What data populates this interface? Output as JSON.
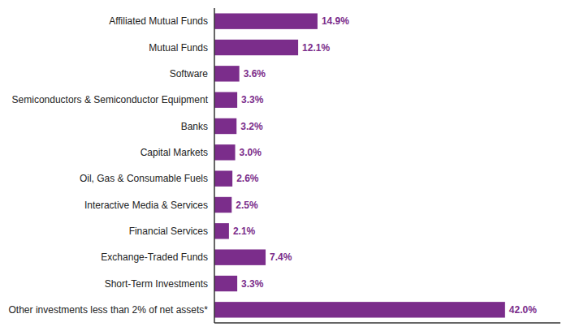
{
  "chart_data": {
    "type": "bar",
    "orientation": "horizontal",
    "categories": [
      "Affiliated Mutual Funds",
      "Mutual Funds",
      "Software",
      "Semiconductors & Semiconductor Equipment",
      "Banks",
      "Capital Markets",
      "Oil, Gas & Consumable Fuels",
      "Interactive Media & Services",
      "Financial Services",
      "Exchange-Traded Funds",
      "Short-Term Investments",
      "Other investments less than 2% of net assets*"
    ],
    "values": [
      14.9,
      12.1,
      3.6,
      3.3,
      3.2,
      3.0,
      2.6,
      2.5,
      2.1,
      7.4,
      3.3,
      42.0
    ],
    "value_labels": [
      "14.9%",
      "12.1%",
      "3.6%",
      "3.3%",
      "3.2%",
      "3.0%",
      "2.6%",
      "2.5%",
      "2.1%",
      "7.4%",
      "3.3%",
      "42.0%"
    ],
    "data_labels": true,
    "color": "#7B2D8B",
    "xlim": [
      0,
      50
    ],
    "tick_labels": "y",
    "grid": false
  }
}
